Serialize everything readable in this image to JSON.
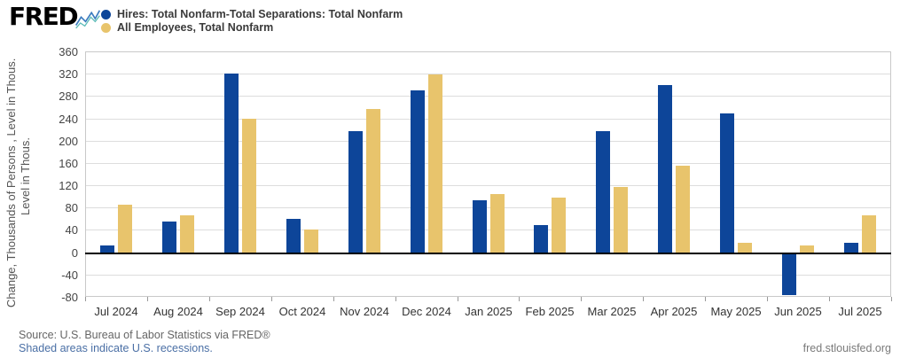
{
  "header": {
    "logo_text": "FRED",
    "logo_icon": "fred-sparkline-icon"
  },
  "legend": [
    {
      "label": "Hires: Total Nonfarm-Total Separations: Total Nonfarm",
      "color": "#0d4599"
    },
    {
      "label": "All Employees, Total Nonfarm",
      "color": "#e8c46c"
    }
  ],
  "chart_data": {
    "type": "bar",
    "title": "",
    "categories": [
      "Jul 2024",
      "Aug 2024",
      "Sep 2024",
      "Oct 2024",
      "Nov 2024",
      "Dec 2024",
      "Jan 2025",
      "Feb 2025",
      "Mar 2025",
      "Apr 2025",
      "May 2025",
      "Jun 2025",
      "Jul 2025"
    ],
    "series": [
      {
        "name": "Hires: Total Nonfarm-Total Separations: Total Nonfarm",
        "color": "#0d4599",
        "values": [
          13,
          55,
          321,
          60,
          218,
          290,
          94,
          50,
          218,
          300,
          249,
          -77,
          17
        ]
      },
      {
        "name": "All Employees, Total Nonfarm",
        "color": "#e8c46c",
        "values": [
          85,
          66,
          240,
          42,
          257,
          320,
          105,
          99,
          118,
          155,
          17,
          12,
          66
        ]
      }
    ],
    "ylabel_lines": [
      "Change, Thousands of Persons , Level in Thous.",
      "Level in Thous."
    ],
    "xlabel": "",
    "yticks": [
      360,
      320,
      280,
      240,
      200,
      160,
      120,
      80,
      40,
      0,
      -40,
      -80
    ],
    "ylim": [
      -80,
      360
    ],
    "grid": true,
    "legend_position": "top-left",
    "zero_line": true
  },
  "footer": {
    "source": "Source: U.S. Bureau of Labor Statistics via FRED®",
    "recession_note": "Shaded areas indicate U.S. recessions.",
    "site": "fred.stlouisfed.org"
  },
  "colors": {
    "series_blue": "#0d4599",
    "series_gold": "#e8c46c",
    "grid": "#dddddd",
    "plot_border": "#c9c9c9",
    "zero_line": "#000000",
    "axis_text": "#444444",
    "legend_text": "#3a3a3a",
    "source_text": "#666666",
    "link_text": "#4a6fa5"
  }
}
